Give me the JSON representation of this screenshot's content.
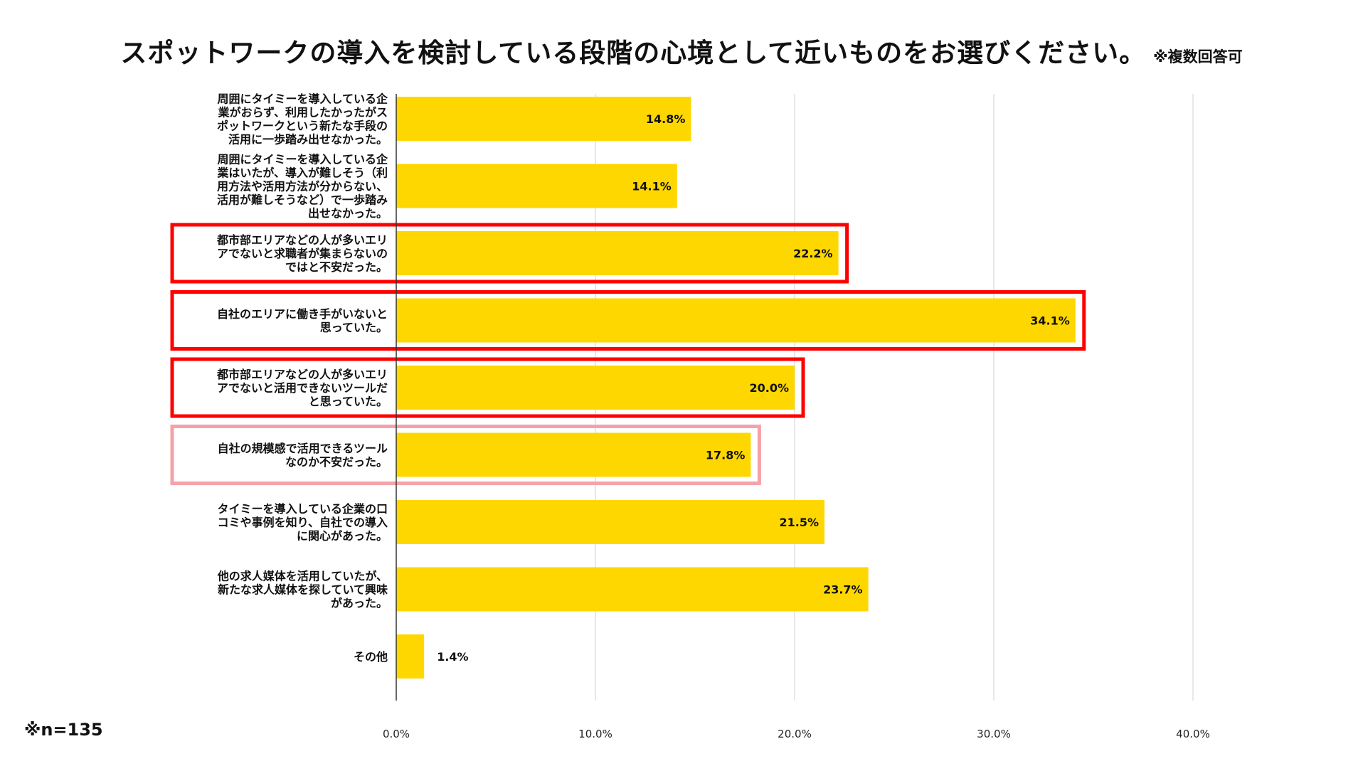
{
  "title": "スポットワークの導入を検討している段階の心境として近いものをお選びください。",
  "title_note": "※複数回答可",
  "sample_note": "※n=135",
  "chart_data": {
    "type": "bar",
    "orientation": "horizontal",
    "title": "スポットワークの導入を検討している段階の心境として近いものをお選びください。",
    "xlim": [
      0,
      40
    ],
    "x_ticks": [
      0,
      10,
      20,
      30,
      40
    ],
    "x_tick_labels": [
      "0.0%",
      "10.0%",
      "20.0%",
      "30.0%",
      "40.0%"
    ],
    "grid": true,
    "bar_color": "#FFD700",
    "highlight_colors": {
      "strong": "#FF0000",
      "light": "#F4A3A8"
    },
    "categories": [
      [
        "周囲にタイミーを導入している企",
        "業がおらず、利用したかったがス",
        "ポットワークという新たな手段の",
        "活用に一歩踏み出せなかった。"
      ],
      [
        "周囲にタイミーを導入している企",
        "業はいたが、導入が難しそう（利",
        "用方法や活用方法が分からない、",
        "活用が難しそうなど）で一歩踏み",
        "出せなかった。"
      ],
      [
        "都市部エリアなどの人が多いエリ",
        "アでないと求職者が集まらないの",
        "ではと不安だった。"
      ],
      [
        "自社のエリアに働き手がいないと",
        "思っていた。"
      ],
      [
        "都市部エリアなどの人が多いエリ",
        "アでないと活用できないツールだ",
        "と思っていた。"
      ],
      [
        "自社の規模感で活用できるツール",
        "なのか不安だった。"
      ],
      [
        "タイミーを導入している企業の口",
        "コミや事例を知り、自社での導入",
        "に関心があった。"
      ],
      [
        "他の求人媒体を活用していたが、",
        "新たな求人媒体を探していて興味",
        "があった。"
      ],
      [
        "その他"
      ]
    ],
    "values": [
      14.8,
      14.1,
      22.2,
      34.1,
      20.0,
      17.8,
      21.5,
      23.7,
      1.4
    ],
    "value_labels": [
      "14.8%",
      "14.1%",
      "22.2%",
      "34.1%",
      "20.0%",
      "17.8%",
      "21.5%",
      "23.7%",
      "1.4%"
    ],
    "highlight": [
      "none",
      "none",
      "strong",
      "strong",
      "strong",
      "light",
      "none",
      "none",
      "none"
    ]
  }
}
